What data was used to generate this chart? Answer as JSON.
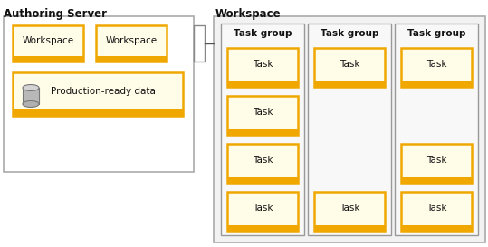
{
  "bg_color": "#ffffff",
  "authoring_server_label": "Authoring Server",
  "workspace_label": "Workspace",
  "task_group_label": "Task group",
  "workspace_box_label": "Workspace",
  "production_data_label": "Production-ready data",
  "task_label": "Task",
  "box_fill": "#fffce8",
  "box_edge": "#f0a800",
  "outer_box_fill": "#ffffff",
  "outer_box_edge": "#aaaaaa",
  "task_group_fill": "#f0f0f0",
  "task_group_edge": "#999999",
  "ws_outer_fill": "#f2f2f2",
  "ws_outer_edge": "#aaaaaa",
  "label_color": "#111111",
  "connector_color": "#555555"
}
